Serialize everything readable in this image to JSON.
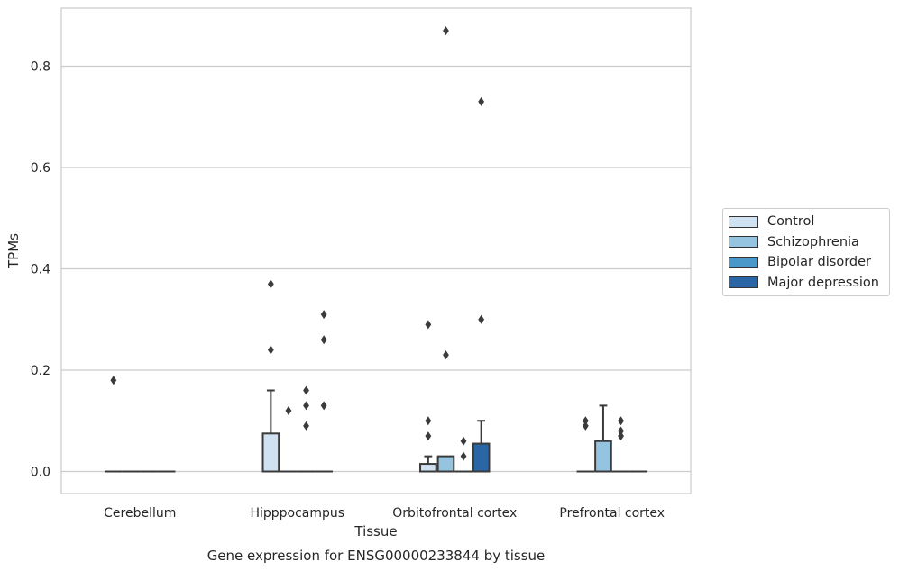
{
  "chart_data": {
    "type": "box",
    "title": "Gene expression for ENSG00000233844 by tissue",
    "xlabel": "Tissue",
    "ylabel": "TPMs",
    "ylim": [
      -0.043,
      0.915
    ],
    "yticks": [
      0.0,
      0.2,
      0.4,
      0.6,
      0.8
    ],
    "ytick_labels": [
      "0.0",
      "0.2",
      "0.4",
      "0.6",
      "0.8"
    ],
    "categories": [
      "Cerebellum",
      "Hipppocampus",
      "Orbitofrontal cortex",
      "Prefrontal cortex"
    ],
    "grid": "horizontal",
    "legend_position": "right",
    "series": [
      {
        "name": "Control",
        "color": "#d0e1f2"
      },
      {
        "name": "Schizophrenia",
        "color": "#94c4df"
      },
      {
        "name": "Bipolar disorder",
        "color": "#4a98c9"
      },
      {
        "name": "Major depression",
        "color": "#2a65a5"
      }
    ],
    "boxes": [
      {
        "category": "Cerebellum",
        "series": "Control",
        "q1": 0,
        "median": 0,
        "q3": 0,
        "whisker_low": 0,
        "whisker_high": 0,
        "outliers": [
          0.18
        ]
      },
      {
        "category": "Cerebellum",
        "series": "Schizophrenia",
        "q1": 0,
        "median": 0,
        "q3": 0,
        "whisker_low": 0,
        "whisker_high": 0,
        "outliers": []
      },
      {
        "category": "Cerebellum",
        "series": "Bipolar disorder",
        "q1": 0,
        "median": 0,
        "q3": 0,
        "whisker_low": 0,
        "whisker_high": 0,
        "outliers": []
      },
      {
        "category": "Cerebellum",
        "series": "Major depression",
        "q1": 0,
        "median": 0,
        "q3": 0,
        "whisker_low": 0,
        "whisker_high": 0,
        "outliers": []
      },
      {
        "category": "Hipppocampus",
        "series": "Control",
        "q1": 0,
        "median": 0,
        "q3": 0.075,
        "whisker_low": 0,
        "whisker_high": 0.16,
        "outliers": [
          0.24,
          0.37
        ]
      },
      {
        "category": "Hipppocampus",
        "series": "Schizophrenia",
        "q1": 0,
        "median": 0,
        "q3": 0,
        "whisker_low": 0,
        "whisker_high": 0,
        "outliers": [
          0.12
        ]
      },
      {
        "category": "Hipppocampus",
        "series": "Bipolar disorder",
        "q1": 0,
        "median": 0,
        "q3": 0,
        "whisker_low": 0,
        "whisker_high": 0,
        "outliers": [
          0.09,
          0.13,
          0.16
        ]
      },
      {
        "category": "Hipppocampus",
        "series": "Major depression",
        "q1": 0,
        "median": 0,
        "q3": 0,
        "whisker_low": 0,
        "whisker_high": 0,
        "outliers": [
          0.13,
          0.26,
          0.31
        ]
      },
      {
        "category": "Orbitofrontal cortex",
        "series": "Control",
        "q1": 0,
        "median": 0,
        "q3": 0.015,
        "whisker_low": 0,
        "whisker_high": 0.03,
        "outliers": [
          0.07,
          0.1,
          0.29
        ]
      },
      {
        "category": "Orbitofrontal cortex",
        "series": "Schizophrenia",
        "q1": 0,
        "median": 0,
        "q3": 0.03,
        "whisker_low": 0,
        "whisker_high": 0.03,
        "outliers": [
          0.23,
          0.87
        ]
      },
      {
        "category": "Orbitofrontal cortex",
        "series": "Bipolar disorder",
        "q1": 0,
        "median": 0,
        "q3": 0,
        "whisker_low": 0,
        "whisker_high": 0,
        "outliers": [
          0.03,
          0.06
        ]
      },
      {
        "category": "Orbitofrontal cortex",
        "series": "Major depression",
        "q1": 0,
        "median": 0,
        "q3": 0.055,
        "whisker_low": 0,
        "whisker_high": 0.1,
        "outliers": [
          0.3,
          0.73
        ]
      },
      {
        "category": "Prefrontal cortex",
        "series": "Control",
        "q1": 0,
        "median": 0,
        "q3": 0,
        "whisker_low": 0,
        "whisker_high": 0,
        "outliers": [
          0.09,
          0.1
        ]
      },
      {
        "category": "Prefrontal cortex",
        "series": "Schizophrenia",
        "q1": 0,
        "median": 0,
        "q3": 0.06,
        "whisker_low": 0,
        "whisker_high": 0.13,
        "outliers": []
      },
      {
        "category": "Prefrontal cortex",
        "series": "Bipolar disorder",
        "q1": 0,
        "median": 0,
        "q3": 0,
        "whisker_low": 0,
        "whisker_high": 0,
        "outliers": [
          0.07,
          0.08,
          0.1
        ]
      },
      {
        "category": "Prefrontal cortex",
        "series": "Major depression",
        "q1": 0,
        "median": 0,
        "q3": 0,
        "whisker_low": 0,
        "whisker_high": 0,
        "outliers": []
      }
    ]
  }
}
